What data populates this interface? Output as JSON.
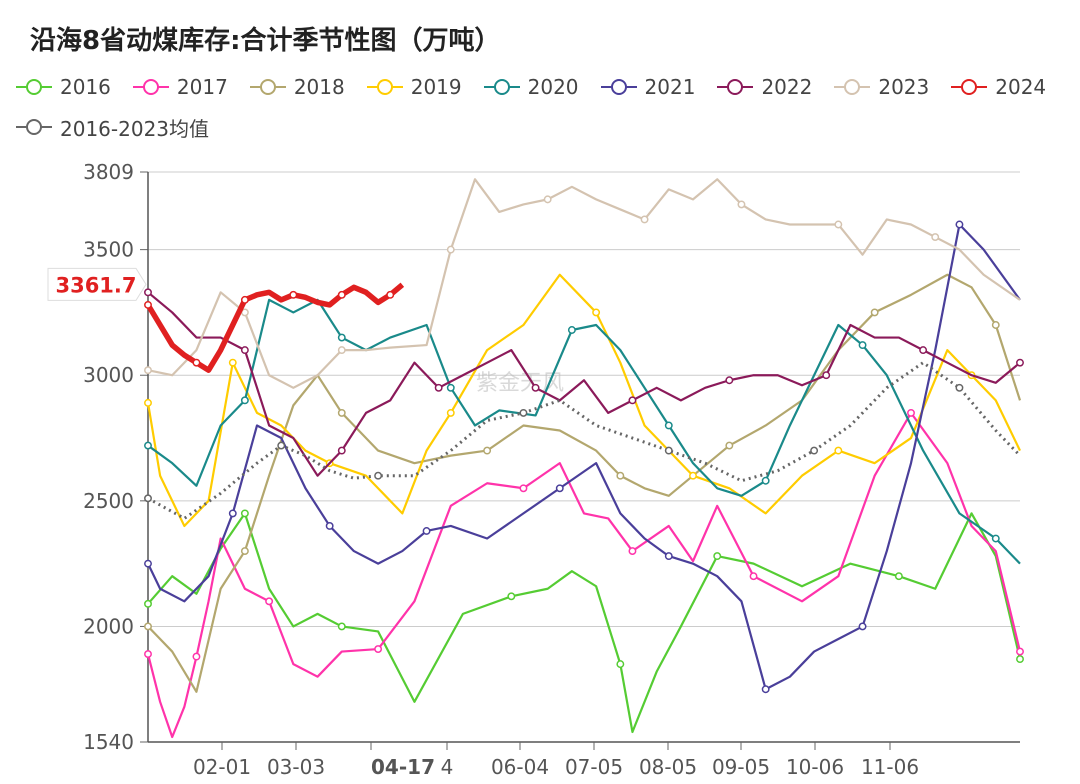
{
  "title": "沿海8省动煤库存:合计季节性图（万吨）",
  "watermark": "紫金天风",
  "current_label": "3361.7",
  "colors": {
    "2016": "#55cc33",
    "2017": "#ff33aa",
    "2018": "#b3a76e",
    "2019": "#ffcc00",
    "2020": "#1a8a8a",
    "2021": "#4a3f9a",
    "2022": "#8b1a5a",
    "2023": "#d4c3b0",
    "2024": "#e02020",
    "avg": "#666666"
  },
  "chart_data": {
    "type": "line",
    "title": "沿海8省动煤库存:合计季节性图（万吨）",
    "ylim": [
      1540,
      3809
    ],
    "y_ticks": [
      "3809",
      "3500",
      "3000",
      "2500",
      "2000",
      "1540"
    ],
    "x_ticks": [
      "02-01",
      "03-03",
      "04-17",
      "4",
      "06-04",
      "07-05",
      "08-05",
      "09-05",
      "10-06",
      "11-06"
    ],
    "highlight_tick": "04-17",
    "series": [
      {
        "name": "2016",
        "key": "2016",
        "x": [
          0,
          10,
          20,
          30,
          40,
          50,
          60,
          70,
          80,
          95,
          110,
          130,
          150,
          165,
          175,
          185,
          195,
          200,
          210,
          220,
          235,
          250,
          270,
          290,
          310,
          325,
          340,
          350,
          360
        ],
        "values": [
          2090,
          2200,
          2130,
          2310,
          2450,
          2150,
          2000,
          2050,
          2000,
          1980,
          1700,
          2050,
          2120,
          2150,
          2220,
          2160,
          1850,
          1580,
          1820,
          2000,
          2280,
          2250,
          2160,
          2250,
          2200,
          2150,
          2450,
          2280,
          1870
        ]
      },
      {
        "name": "2017",
        "key": "2017",
        "x": [
          0,
          5,
          10,
          15,
          20,
          25,
          30,
          40,
          50,
          60,
          70,
          80,
          95,
          110,
          125,
          140,
          155,
          170,
          180,
          190,
          200,
          215,
          225,
          235,
          250,
          270,
          285,
          300,
          315,
          330,
          340,
          350,
          360
        ],
        "values": [
          1890,
          1700,
          1560,
          1680,
          1880,
          2100,
          2350,
          2150,
          2100,
          1850,
          1800,
          1900,
          1910,
          2100,
          2480,
          2570,
          2550,
          2650,
          2450,
          2430,
          2300,
          2400,
          2260,
          2480,
          2200,
          2100,
          2200,
          2600,
          2850,
          2650,
          2400,
          2300,
          1900
        ]
      },
      {
        "name": "2018",
        "key": "2018",
        "x": [
          0,
          10,
          20,
          30,
          40,
          50,
          60,
          70,
          80,
          95,
          110,
          125,
          140,
          155,
          170,
          185,
          195,
          205,
          215,
          225,
          240,
          255,
          270,
          285,
          300,
          315,
          330,
          340,
          350,
          360
        ],
        "values": [
          2000,
          1900,
          1740,
          2150,
          2300,
          2600,
          2880,
          3000,
          2850,
          2700,
          2650,
          2680,
          2700,
          2800,
          2780,
          2700,
          2600,
          2550,
          2520,
          2600,
          2720,
          2800,
          2900,
          3100,
          3250,
          3320,
          3400,
          3350,
          3200,
          2900
        ]
      },
      {
        "name": "2019",
        "key": "2019",
        "x": [
          0,
          5,
          15,
          25,
          35,
          45,
          55,
          65,
          75,
          90,
          105,
          115,
          125,
          140,
          155,
          170,
          185,
          195,
          205,
          215,
          225,
          240,
          255,
          270,
          285,
          300,
          315,
          330,
          340,
          350,
          360
        ],
        "values": [
          2890,
          2600,
          2400,
          2500,
          3050,
          2850,
          2800,
          2700,
          2650,
          2600,
          2450,
          2700,
          2850,
          3100,
          3200,
          3400,
          3250,
          3050,
          2800,
          2700,
          2600,
          2550,
          2450,
          2600,
          2700,
          2650,
          2750,
          3100,
          3000,
          2900,
          2700
        ]
      },
      {
        "name": "2020",
        "key": "2020",
        "x": [
          0,
          10,
          20,
          30,
          40,
          50,
          60,
          70,
          80,
          90,
          100,
          115,
          125,
          135,
          145,
          160,
          175,
          185,
          195,
          205,
          215,
          225,
          235,
          245,
          255,
          265,
          275,
          285,
          295,
          305,
          320,
          335,
          350,
          360
        ],
        "values": [
          2720,
          2650,
          2560,
          2800,
          2900,
          3300,
          3250,
          3300,
          3150,
          3100,
          3150,
          3200,
          2950,
          2800,
          2860,
          2840,
          3180,
          3200,
          3100,
          2950,
          2800,
          2650,
          2550,
          2520,
          2580,
          2800,
          3000,
          3200,
          3120,
          3000,
          2700,
          2450,
          2350,
          2250
        ]
      },
      {
        "name": "2021",
        "key": "2021",
        "x": [
          0,
          5,
          15,
          25,
          35,
          45,
          55,
          65,
          75,
          85,
          95,
          105,
          115,
          125,
          140,
          155,
          170,
          185,
          195,
          205,
          215,
          225,
          235,
          245,
          255,
          265,
          275,
          285,
          295,
          305,
          315,
          325,
          335,
          345,
          360
        ],
        "values": [
          2250,
          2150,
          2100,
          2200,
          2450,
          2800,
          2750,
          2550,
          2400,
          2300,
          2250,
          2300,
          2380,
          2400,
          2350,
          2450,
          2550,
          2650,
          2450,
          2350,
          2280,
          2250,
          2200,
          2100,
          1750,
          1800,
          1900,
          1950,
          2000,
          2300,
          2650,
          3100,
          3600,
          3500,
          3300
        ]
      },
      {
        "name": "2022",
        "key": "2022",
        "x": [
          0,
          10,
          20,
          30,
          40,
          50,
          60,
          70,
          80,
          90,
          100,
          110,
          120,
          130,
          140,
          150,
          160,
          170,
          180,
          190,
          200,
          210,
          220,
          230,
          240,
          250,
          260,
          270,
          280,
          290,
          300,
          310,
          320,
          330,
          340,
          350,
          360
        ],
        "values": [
          3330,
          3250,
          3150,
          3150,
          3100,
          2800,
          2750,
          2600,
          2700,
          2850,
          2900,
          3050,
          2950,
          3000,
          3050,
          3100,
          2950,
          2900,
          2980,
          2850,
          2900,
          2950,
          2900,
          2950,
          2980,
          3000,
          3000,
          2960,
          3000,
          3200,
          3150,
          3150,
          3100,
          3050,
          3000,
          2970,
          3050
        ]
      },
      {
        "name": "2023",
        "key": "2023",
        "x": [
          0,
          10,
          20,
          30,
          40,
          50,
          60,
          70,
          80,
          90,
          100,
          115,
          125,
          135,
          145,
          155,
          165,
          175,
          185,
          195,
          205,
          215,
          225,
          235,
          245,
          255,
          265,
          275,
          285,
          295,
          305,
          315,
          325,
          335,
          345,
          360
        ],
        "values": [
          3020,
          3000,
          3100,
          3330,
          3250,
          3000,
          2950,
          3000,
          3100,
          3100,
          3110,
          3120,
          3500,
          3780,
          3650,
          3680,
          3700,
          3750,
          3700,
          3660,
          3620,
          3740,
          3700,
          3780,
          3680,
          3620,
          3600,
          3600,
          3600,
          3480,
          3620,
          3600,
          3550,
          3500,
          3400,
          3300
        ]
      },
      {
        "name": "2024",
        "key": "2024",
        "x": [
          0,
          5,
          10,
          15,
          20,
          25,
          30,
          35,
          40,
          45,
          50,
          55,
          60,
          65,
          70,
          75,
          80,
          85,
          90,
          95,
          100,
          105
        ],
        "values": [
          3280,
          3200,
          3120,
          3080,
          3050,
          3020,
          3100,
          3200,
          3300,
          3320,
          3330,
          3300,
          3320,
          3310,
          3290,
          3280,
          3320,
          3350,
          3330,
          3290,
          3320,
          3360
        ]
      },
      {
        "name": "2016-2023均值",
        "key": "avg",
        "x": [
          0,
          15,
          30,
          45,
          55,
          65,
          75,
          85,
          95,
          110,
          125,
          140,
          155,
          170,
          185,
          200,
          215,
          230,
          245,
          260,
          275,
          290,
          305,
          320,
          335,
          350,
          360
        ],
        "values": [
          2510,
          2430,
          2530,
          2650,
          2720,
          2680,
          2620,
          2590,
          2600,
          2600,
          2700,
          2820,
          2850,
          2900,
          2800,
          2750,
          2700,
          2650,
          2580,
          2620,
          2700,
          2800,
          2950,
          3050,
          2950,
          2780,
          2680
        ]
      }
    ]
  },
  "legend": {
    "row1": [
      {
        "label": "2016",
        "key": "2016"
      },
      {
        "label": "2017",
        "key": "2017"
      },
      {
        "label": "2018",
        "key": "2018"
      },
      {
        "label": "2019",
        "key": "2019"
      },
      {
        "label": "2020",
        "key": "2020"
      },
      {
        "label": "2021",
        "key": "2021"
      },
      {
        "label": "2022",
        "key": "2022"
      },
      {
        "label": "2023",
        "key": "2023"
      },
      {
        "label": "2024",
        "key": "2024"
      }
    ],
    "row2": [
      {
        "label": "2016-2023均值",
        "key": "avg"
      }
    ]
  }
}
